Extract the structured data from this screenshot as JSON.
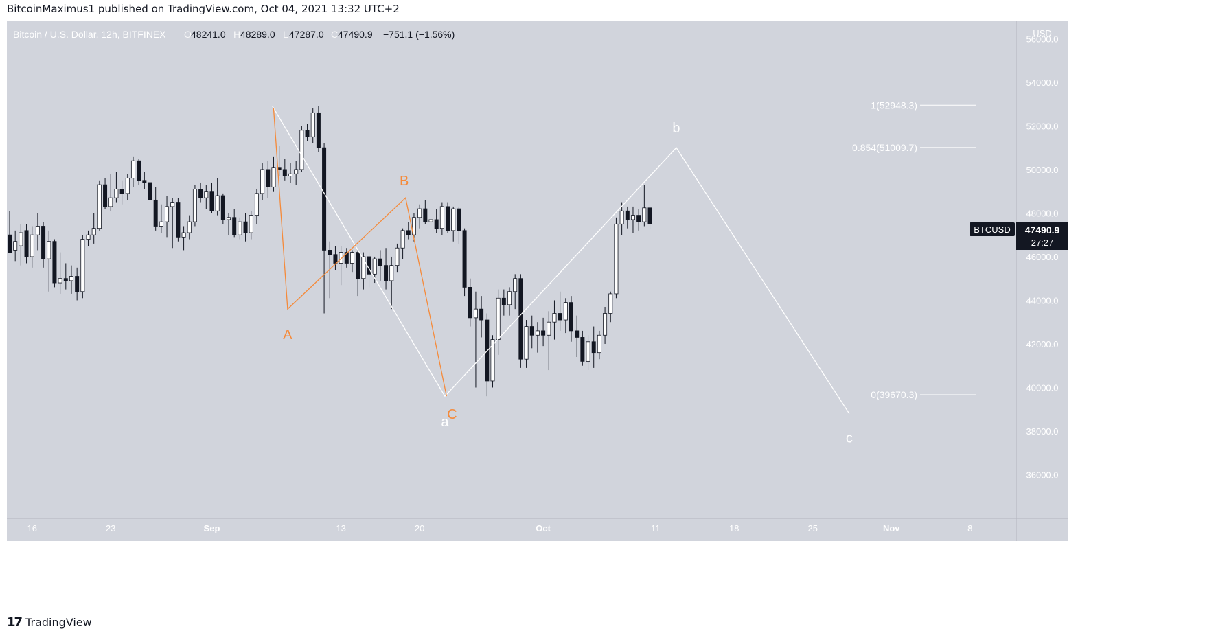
{
  "header": {
    "publish_line": "BitcoinMaximus1 published on TradingView.com, Oct 04, 2021 13:32 UTC+2"
  },
  "legend": {
    "symbol": "Bitcoin / U.S. Dollar, 12h, BITFINEX",
    "o_label": "O",
    "o_value": "48241.0",
    "h_label": "H",
    "h_value": "48289.0",
    "l_label": "L",
    "l_value": "47287.0",
    "c_label": "C",
    "c_value": "47490.9",
    "change": "−751.1 (−1.56%)"
  },
  "price_axis": {
    "currency": "USD",
    "ticks": [
      "56000.0",
      "54000.0",
      "52000.0",
      "50000.0",
      "48000.0",
      "46000.0",
      "44000.0",
      "42000.0",
      "40000.0",
      "38000.0",
      "36000.0"
    ]
  },
  "price_tag": {
    "symbol": "BTCUSD",
    "price": "47490.9",
    "countdown": "27:27"
  },
  "time_axis": {
    "ticks": [
      "16",
      "23",
      "Sep",
      "13",
      "20",
      "Oct",
      "11",
      "18",
      "25",
      "Nov",
      "8"
    ]
  },
  "footer": {
    "brand": "TradingView",
    "logo_glyph": "17"
  },
  "colors": {
    "background": "#d1d4dc",
    "candle_up": "#ffffff",
    "candle_down": "#131722",
    "wave_primary": "#ffffff",
    "wave_secondary": "#f58a3a",
    "tag_bg": "#131722"
  },
  "chart_data": {
    "type": "candlestick",
    "title": "Bitcoin / U.S. Dollar, 12h, BITFINEX",
    "ylabel": "USD",
    "ylim": [
      34000,
      56800
    ],
    "grid": false,
    "candles": [
      {
        "o": 47000,
        "h": 48100,
        "l": 46400,
        "c": 46200
      },
      {
        "o": 46300,
        "h": 47200,
        "l": 45800,
        "c": 46700
      },
      {
        "o": 46500,
        "h": 47500,
        "l": 45600,
        "c": 47100
      },
      {
        "o": 47200,
        "h": 47500,
        "l": 45700,
        "c": 46000
      },
      {
        "o": 46000,
        "h": 47400,
        "l": 45500,
        "c": 47000
      },
      {
        "o": 47000,
        "h": 48000,
        "l": 46300,
        "c": 47400
      },
      {
        "o": 47400,
        "h": 47600,
        "l": 45500,
        "c": 45900
      },
      {
        "o": 45900,
        "h": 47200,
        "l": 44400,
        "c": 46700
      },
      {
        "o": 46700,
        "h": 46800,
        "l": 44600,
        "c": 44800
      },
      {
        "o": 44800,
        "h": 46200,
        "l": 44300,
        "c": 45000
      },
      {
        "o": 45000,
        "h": 45700,
        "l": 44500,
        "c": 44900
      },
      {
        "o": 44900,
        "h": 45600,
        "l": 44300,
        "c": 45100
      },
      {
        "o": 45100,
        "h": 45500,
        "l": 44000,
        "c": 44400
      },
      {
        "o": 44400,
        "h": 47000,
        "l": 44100,
        "c": 46800
      },
      {
        "o": 46800,
        "h": 47200,
        "l": 46500,
        "c": 47000
      },
      {
        "o": 47000,
        "h": 48000,
        "l": 46600,
        "c": 47300
      },
      {
        "o": 47300,
        "h": 49500,
        "l": 47200,
        "c": 49300
      },
      {
        "o": 49300,
        "h": 49600,
        "l": 48200,
        "c": 48300
      },
      {
        "o": 48300,
        "h": 49800,
        "l": 48100,
        "c": 48700
      },
      {
        "o": 48700,
        "h": 49900,
        "l": 48500,
        "c": 49100
      },
      {
        "o": 49100,
        "h": 49500,
        "l": 48400,
        "c": 48900
      },
      {
        "o": 48900,
        "h": 49800,
        "l": 48600,
        "c": 49600
      },
      {
        "o": 49600,
        "h": 50600,
        "l": 49200,
        "c": 50400
      },
      {
        "o": 50400,
        "h": 50500,
        "l": 49300,
        "c": 49500
      },
      {
        "o": 49500,
        "h": 49900,
        "l": 49100,
        "c": 49400
      },
      {
        "o": 49400,
        "h": 49600,
        "l": 48400,
        "c": 48600
      },
      {
        "o": 48600,
        "h": 49200,
        "l": 47200,
        "c": 47400
      },
      {
        "o": 47400,
        "h": 48400,
        "l": 47100,
        "c": 47600
      },
      {
        "o": 47600,
        "h": 48800,
        "l": 46900,
        "c": 48300
      },
      {
        "o": 48300,
        "h": 48700,
        "l": 46400,
        "c": 48500
      },
      {
        "o": 48500,
        "h": 48700,
        "l": 46700,
        "c": 46900
      },
      {
        "o": 46900,
        "h": 47400,
        "l": 46300,
        "c": 47100
      },
      {
        "o": 47100,
        "h": 47900,
        "l": 46800,
        "c": 47600
      },
      {
        "o": 47600,
        "h": 49300,
        "l": 47400,
        "c": 49100
      },
      {
        "o": 49100,
        "h": 49400,
        "l": 48500,
        "c": 48700
      },
      {
        "o": 48700,
        "h": 49300,
        "l": 48200,
        "c": 49000
      },
      {
        "o": 49000,
        "h": 49400,
        "l": 48000,
        "c": 48100
      },
      {
        "o": 48100,
        "h": 49600,
        "l": 47900,
        "c": 48800
      },
      {
        "o": 48800,
        "h": 48900,
        "l": 47500,
        "c": 47700
      },
      {
        "o": 47700,
        "h": 48000,
        "l": 47000,
        "c": 47800
      },
      {
        "o": 47800,
        "h": 48200,
        "l": 46900,
        "c": 47000
      },
      {
        "o": 47000,
        "h": 47800,
        "l": 46800,
        "c": 47600
      },
      {
        "o": 47600,
        "h": 48000,
        "l": 46700,
        "c": 47100
      },
      {
        "o": 47100,
        "h": 48100,
        "l": 46800,
        "c": 47900
      },
      {
        "o": 47900,
        "h": 49100,
        "l": 47500,
        "c": 48900
      },
      {
        "o": 48900,
        "h": 50300,
        "l": 48600,
        "c": 50000
      },
      {
        "o": 50000,
        "h": 50400,
        "l": 48700,
        "c": 49200
      },
      {
        "o": 49200,
        "h": 50600,
        "l": 49000,
        "c": 50100
      },
      {
        "o": 50100,
        "h": 51100,
        "l": 49700,
        "c": 50000
      },
      {
        "o": 50000,
        "h": 50500,
        "l": 49500,
        "c": 49700
      },
      {
        "o": 49700,
        "h": 50300,
        "l": 49400,
        "c": 49800
      },
      {
        "o": 49800,
        "h": 50400,
        "l": 49300,
        "c": 50000
      },
      {
        "o": 50000,
        "h": 52000,
        "l": 49900,
        "c": 51800
      },
      {
        "o": 51800,
        "h": 52100,
        "l": 51300,
        "c": 51500
      },
      {
        "o": 51500,
        "h": 52800,
        "l": 51200,
        "c": 52600
      },
      {
        "o": 52600,
        "h": 52900,
        "l": 50800,
        "c": 51000
      },
      {
        "o": 51000,
        "h": 51200,
        "l": 43400,
        "c": 46300
      },
      {
        "o": 46300,
        "h": 46700,
        "l": 44100,
        "c": 46100
      },
      {
        "o": 46100,
        "h": 46500,
        "l": 45400,
        "c": 45700
      },
      {
        "o": 45700,
        "h": 46500,
        "l": 44700,
        "c": 46200
      },
      {
        "o": 46200,
        "h": 46400,
        "l": 45500,
        "c": 45700
      },
      {
        "o": 45700,
        "h": 46300,
        "l": 45300,
        "c": 46200
      },
      {
        "o": 46200,
        "h": 46300,
        "l": 44200,
        "c": 45000
      },
      {
        "o": 45000,
        "h": 46200,
        "l": 44500,
        "c": 46000
      },
      {
        "o": 46000,
        "h": 46200,
        "l": 44600,
        "c": 45200
      },
      {
        "o": 45200,
        "h": 46000,
        "l": 44800,
        "c": 45900
      },
      {
        "o": 45900,
        "h": 46300,
        "l": 44900,
        "c": 45600
      },
      {
        "o": 45600,
        "h": 46400,
        "l": 44500,
        "c": 44900
      },
      {
        "o": 44900,
        "h": 46000,
        "l": 43600,
        "c": 45600
      },
      {
        "o": 45600,
        "h": 46600,
        "l": 45300,
        "c": 46400
      },
      {
        "o": 46400,
        "h": 47300,
        "l": 45900,
        "c": 47200
      },
      {
        "o": 47200,
        "h": 47600,
        "l": 46800,
        "c": 47000
      },
      {
        "o": 47000,
        "h": 48000,
        "l": 46700,
        "c": 47800
      },
      {
        "o": 47800,
        "h": 48400,
        "l": 47300,
        "c": 48200
      },
      {
        "o": 48200,
        "h": 48600,
        "l": 47500,
        "c": 47600
      },
      {
        "o": 47600,
        "h": 48100,
        "l": 47200,
        "c": 47700
      },
      {
        "o": 47700,
        "h": 48200,
        "l": 47100,
        "c": 47300
      },
      {
        "o": 47300,
        "h": 48500,
        "l": 47000,
        "c": 48300
      },
      {
        "o": 48300,
        "h": 48500,
        "l": 47100,
        "c": 47200
      },
      {
        "o": 47200,
        "h": 48300,
        "l": 46700,
        "c": 48200
      },
      {
        "o": 48200,
        "h": 48300,
        "l": 46600,
        "c": 47200
      },
      {
        "o": 47200,
        "h": 47300,
        "l": 44200,
        "c": 44600
      },
      {
        "o": 44600,
        "h": 45000,
        "l": 42800,
        "c": 43200
      },
      {
        "o": 43200,
        "h": 44400,
        "l": 40000,
        "c": 43600
      },
      {
        "o": 43600,
        "h": 44200,
        "l": 42300,
        "c": 43100
      },
      {
        "o": 43100,
        "h": 43400,
        "l": 39600,
        "c": 40300
      },
      {
        "o": 40300,
        "h": 42400,
        "l": 40000,
        "c": 42200
      },
      {
        "o": 42200,
        "h": 44500,
        "l": 41500,
        "c": 44100
      },
      {
        "o": 44100,
        "h": 44500,
        "l": 43300,
        "c": 43800
      },
      {
        "o": 43800,
        "h": 44600,
        "l": 43300,
        "c": 44400
      },
      {
        "o": 44400,
        "h": 45200,
        "l": 43600,
        "c": 45000
      },
      {
        "o": 45000,
        "h": 45200,
        "l": 40900,
        "c": 41300
      },
      {
        "o": 41300,
        "h": 43100,
        "l": 40900,
        "c": 42800
      },
      {
        "o": 42800,
        "h": 43300,
        "l": 41800,
        "c": 42400
      },
      {
        "o": 42400,
        "h": 43000,
        "l": 41600,
        "c": 42600
      },
      {
        "o": 42600,
        "h": 43200,
        "l": 41900,
        "c": 42400
      },
      {
        "o": 42400,
        "h": 43500,
        "l": 40800,
        "c": 43000
      },
      {
        "o": 43000,
        "h": 44000,
        "l": 42200,
        "c": 43400
      },
      {
        "o": 43400,
        "h": 44400,
        "l": 42600,
        "c": 43100
      },
      {
        "o": 43100,
        "h": 44100,
        "l": 42500,
        "c": 43900
      },
      {
        "o": 43900,
        "h": 44200,
        "l": 42100,
        "c": 42600
      },
      {
        "o": 42600,
        "h": 43300,
        "l": 41400,
        "c": 42300
      },
      {
        "o": 42300,
        "h": 42600,
        "l": 41000,
        "c": 41200
      },
      {
        "o": 41200,
        "h": 42400,
        "l": 40800,
        "c": 42100
      },
      {
        "o": 42100,
        "h": 42800,
        "l": 40900,
        "c": 41600
      },
      {
        "o": 41600,
        "h": 42600,
        "l": 41300,
        "c": 42400
      },
      {
        "o": 42400,
        "h": 43700,
        "l": 42000,
        "c": 43400
      },
      {
        "o": 43400,
        "h": 44400,
        "l": 43000,
        "c": 44300
      },
      {
        "o": 44300,
        "h": 47800,
        "l": 44100,
        "c": 47500
      },
      {
        "o": 47500,
        "h": 48500,
        "l": 47000,
        "c": 48100
      },
      {
        "o": 48100,
        "h": 48300,
        "l": 47300,
        "c": 47700
      },
      {
        "o": 47700,
        "h": 48300,
        "l": 47100,
        "c": 47900
      },
      {
        "o": 47900,
        "h": 48200,
        "l": 47200,
        "c": 47600
      },
      {
        "o": 47600,
        "h": 49300,
        "l": 47400,
        "c": 48241
      },
      {
        "o": 48241,
        "h": 48289,
        "l": 47287,
        "c": 47490.9
      }
    ],
    "wave_primary": [
      {
        "label": "",
        "price": 52900
      },
      {
        "label": "a",
        "price": 39600
      },
      {
        "label": "b",
        "price": 51000
      },
      {
        "label": "c",
        "price": 38800
      }
    ],
    "wave_secondary": [
      {
        "label": "",
        "price": 52800
      },
      {
        "label": "A",
        "price": 43600
      },
      {
        "label": "B",
        "price": 48700
      },
      {
        "label": "C",
        "price": 39600
      }
    ],
    "fib_levels": [
      {
        "label": "1(52948.3)",
        "price": 52948.3
      },
      {
        "label": "0.854(51009.7)",
        "price": 51009.7
      },
      {
        "label": "0(39670.3)",
        "price": 39670.3
      }
    ]
  }
}
